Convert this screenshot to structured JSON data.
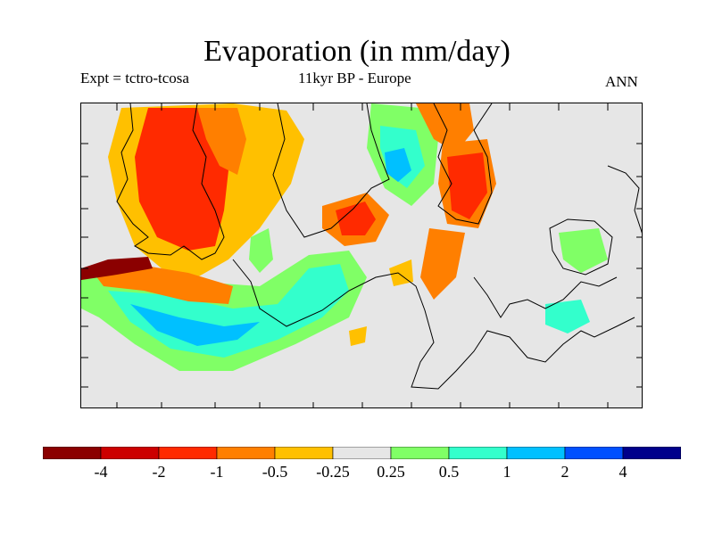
{
  "title": "Evaporation (in mm/day)",
  "subtitle_left": "Expt = tctro-tcosa",
  "subtitle_center": "11kyr BP - Europe",
  "subtitle_right": "ANN",
  "colors": {
    "land": "#e6e6e6",
    "outline": "#000000"
  },
  "colorbar": {
    "colors": [
      "#8b0000",
      "#cc0000",
      "#ff2a00",
      "#ff7f00",
      "#ffc000",
      "#e6e6e6",
      "#80ff66",
      "#33ffcc",
      "#00c0ff",
      "#0050ff",
      "#00008b"
    ],
    "labels": [
      "-4",
      "-2",
      "-1",
      "-0.5",
      "-0.25",
      "0.25",
      "0.5",
      "1",
      "2",
      "4"
    ]
  }
}
